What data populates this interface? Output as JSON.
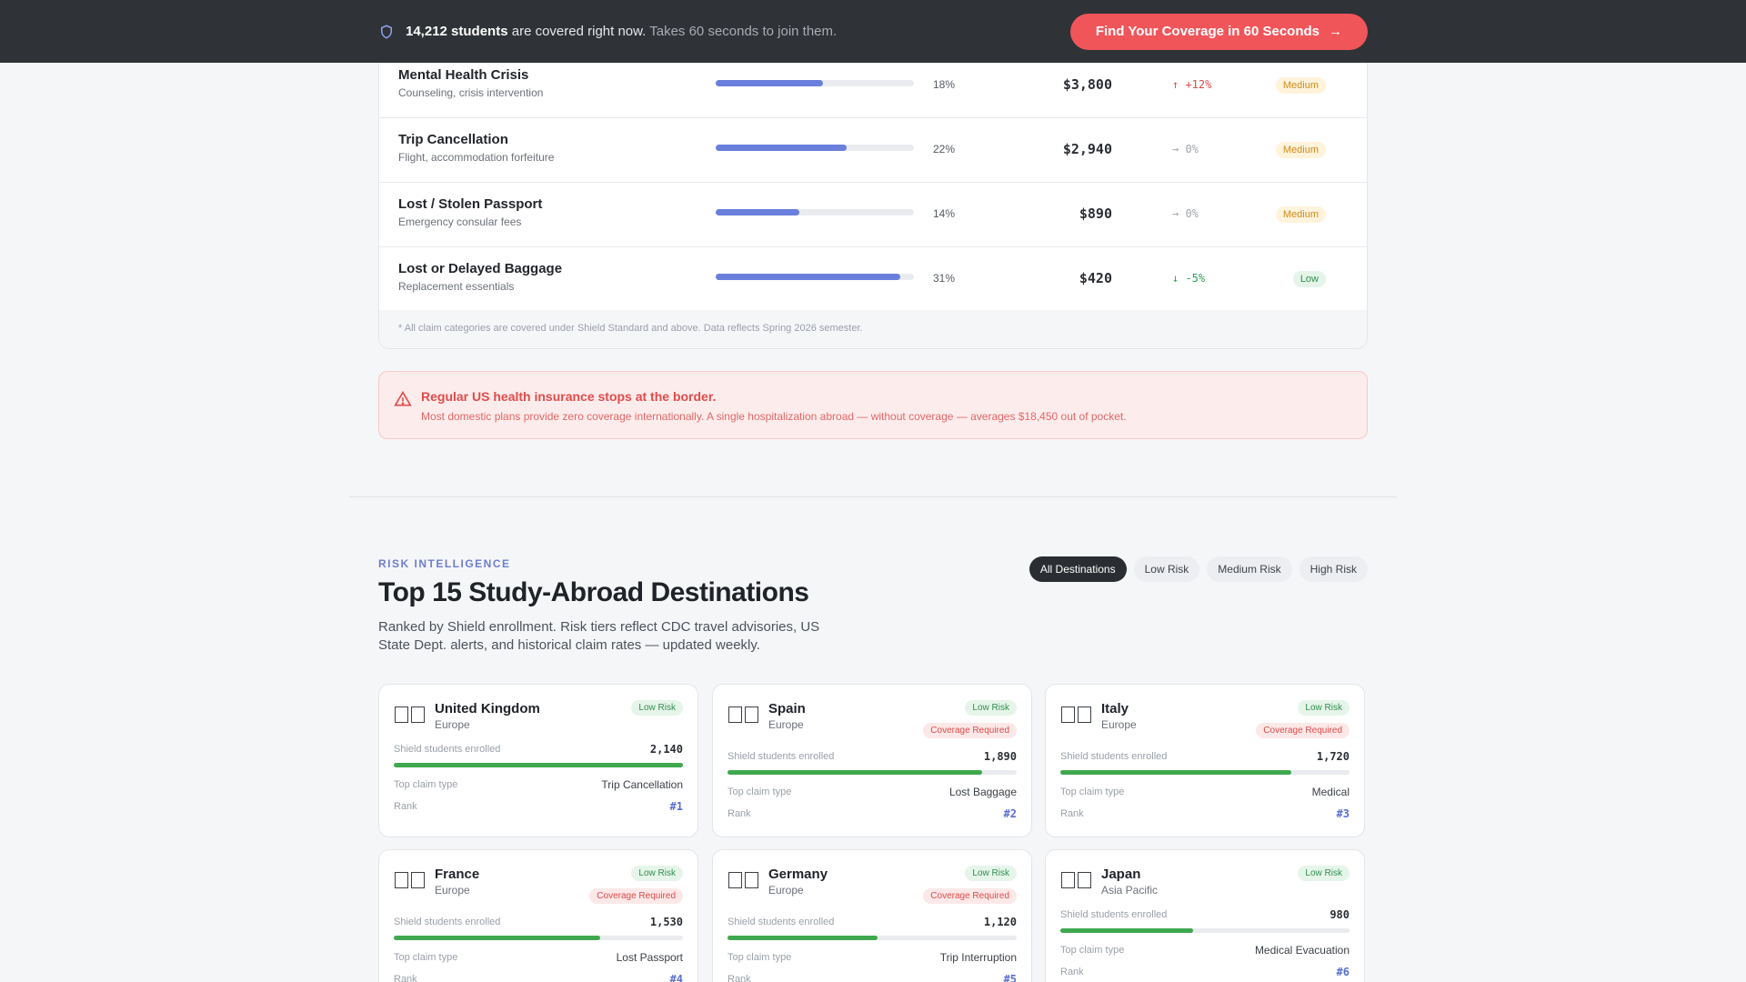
{
  "banner": {
    "count": "14,212 students",
    "text": "are covered right now.",
    "muted": "Takes 60 seconds to join them.",
    "cta_label": "Find Your Coverage in 60 Seconds",
    "cta_icon": "arrow-right-icon"
  },
  "claims": [
    {
      "name": "Mental Health Crisis",
      "sub": "Counseling, crisis intervention",
      "share": 0.54,
      "pct": "18%",
      "amount": "$3,800",
      "trend": "↑ +12%",
      "trend_dir": "up",
      "severity": "Medium"
    },
    {
      "name": "Trip Cancellation",
      "sub": "Flight, accommodation forfeiture",
      "share": 0.66,
      "pct": "22%",
      "amount": "$2,940",
      "trend": "→ 0%",
      "trend_dir": "flat",
      "severity": "Medium"
    },
    {
      "name": "Lost / Stolen Passport",
      "sub": "Emergency consular fees",
      "share": 0.42,
      "pct": "14%",
      "amount": "$890",
      "trend": "→ 0%",
      "trend_dir": "flat",
      "severity": "Medium"
    },
    {
      "name": "Lost or Delayed Baggage",
      "sub": "Replacement essentials",
      "share": 0.93,
      "pct": "31%",
      "amount": "$420",
      "trend": "↓ -5%",
      "trend_dir": "down",
      "severity": "Low"
    }
  ],
  "claims_footnote": "* All claim categories are covered under Shield Standard and above. Data reflects Spring 2026 semester.",
  "alert": {
    "title": "Regular US health insurance stops at the border.",
    "text": "Most domestic plans provide zero coverage internationally. A single hospitalization abroad — without coverage — averages $18,450 out of pocket."
  },
  "section": {
    "eyebrow": "RISK INTELLIGENCE",
    "title": "Top 15 Study-Abroad Destinations",
    "subtitle": "Ranked by Shield enrollment. Risk tiers reflect CDC travel advisories, US State Dept. alerts, and historical claim rates — updated weekly."
  },
  "filters": [
    "All Destinations",
    "Low Risk",
    "Medium Risk",
    "High Risk"
  ],
  "card_labels": {
    "enrolled": "Shield students enrolled",
    "top_claim": "Top claim type",
    "rank": "Rank"
  },
  "destinations": [
    {
      "name": "United Kingdom",
      "region": "Europe",
      "risk": "Low Risk",
      "required": "",
      "enrolled": "2,140",
      "share": 1.0,
      "top_claim": "Trip Cancellation",
      "rank": "#1"
    },
    {
      "name": "Spain",
      "region": "Europe",
      "risk": "Low Risk",
      "required": "Coverage Required",
      "enrolled": "1,890",
      "share": 0.88,
      "top_claim": "Lost Baggage",
      "rank": "#2"
    },
    {
      "name": "Italy",
      "region": "Europe",
      "risk": "Low Risk",
      "required": "Coverage Required",
      "enrolled": "1,720",
      "share": 0.8,
      "top_claim": "Medical",
      "rank": "#3"
    },
    {
      "name": "France",
      "region": "Europe",
      "risk": "Low Risk",
      "required": "Coverage Required",
      "enrolled": "1,530",
      "share": 0.715,
      "top_claim": "Lost Passport",
      "rank": "#4"
    },
    {
      "name": "Germany",
      "region": "Europe",
      "risk": "Low Risk",
      "required": "Coverage Required",
      "enrolled": "1,120",
      "share": 0.52,
      "top_claim": "Trip Interruption",
      "rank": "#5"
    },
    {
      "name": "Japan",
      "region": "Asia Pacific",
      "risk": "Low Risk",
      "required": "",
      "enrolled": "980",
      "share": 0.46,
      "top_claim": "Medical Evacuation",
      "rank": "#6"
    }
  ],
  "colors": {
    "accent": "#f0555a",
    "bar": "#6a7fdb",
    "enroll": "#3fa84f"
  }
}
